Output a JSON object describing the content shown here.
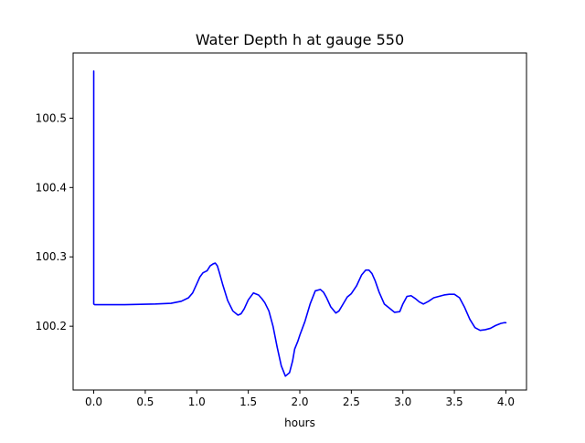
{
  "chart_data": {
    "type": "line",
    "title": "Water Depth h at gauge 550",
    "xlabel": "hours",
    "ylabel": "",
    "xlim": [
      -0.2,
      4.2
    ],
    "ylim": [
      100.108,
      100.594
    ],
    "xticks": [
      0.0,
      0.5,
      1.0,
      1.5,
      2.0,
      2.5,
      3.0,
      3.5,
      4.0
    ],
    "xtick_labels": [
      "0.0",
      "0.5",
      "1.0",
      "1.5",
      "2.0",
      "2.5",
      "3.0",
      "3.5",
      "4.0"
    ],
    "yticks": [
      100.2,
      100.3,
      100.4,
      100.5
    ],
    "ytick_labels": [
      "100.2",
      "100.3",
      "100.4",
      "100.5"
    ],
    "grid": false,
    "colors": {
      "line": "#0000ff",
      "axes": "#000000",
      "background": "#ffffff"
    },
    "series": [
      {
        "x": [
          0.0,
          0.0,
          0.01,
          0.3,
          0.6,
          0.75,
          0.85,
          0.92,
          0.96,
          1.0,
          1.03,
          1.06,
          1.1,
          1.13,
          1.16,
          1.18,
          1.2,
          1.22,
          1.25,
          1.3,
          1.35,
          1.4,
          1.43,
          1.46,
          1.5,
          1.55,
          1.6,
          1.63,
          1.66,
          1.7,
          1.74,
          1.78,
          1.82,
          1.86,
          1.9,
          1.93,
          1.95,
          1.98,
          2.0,
          2.05,
          2.1,
          2.15,
          2.2,
          2.23,
          2.26,
          2.3,
          2.35,
          2.38,
          2.42,
          2.46,
          2.5,
          2.55,
          2.6,
          2.64,
          2.67,
          2.7,
          2.73,
          2.77,
          2.82,
          2.87,
          2.92,
          2.97,
          3.0,
          3.04,
          3.08,
          3.12,
          3.16,
          3.2,
          3.25,
          3.3,
          3.35,
          3.4,
          3.45,
          3.5,
          3.55,
          3.6,
          3.65,
          3.7,
          3.75,
          3.8,
          3.85,
          3.9,
          3.95,
          3.98,
          4.0
        ],
        "y": [
          100.568,
          100.232,
          100.231,
          100.231,
          100.232,
          100.233,
          100.236,
          100.241,
          100.248,
          100.261,
          100.271,
          100.277,
          100.28,
          100.287,
          100.29,
          100.291,
          100.287,
          100.277,
          100.261,
          100.237,
          100.222,
          100.216,
          100.218,
          100.225,
          100.238,
          100.248,
          100.245,
          100.24,
          100.234,
          100.222,
          100.2,
          100.17,
          100.143,
          100.128,
          100.133,
          100.15,
          100.167,
          100.178,
          100.187,
          100.207,
          100.232,
          100.251,
          100.253,
          100.249,
          100.241,
          100.228,
          100.219,
          100.222,
          100.232,
          100.242,
          100.247,
          100.258,
          100.274,
          100.281,
          100.281,
          100.276,
          100.266,
          100.249,
          100.232,
          100.226,
          100.22,
          100.221,
          100.232,
          100.243,
          100.244,
          100.24,
          100.235,
          100.232,
          100.236,
          100.241,
          100.243,
          100.245,
          100.246,
          100.246,
          100.241,
          100.227,
          100.21,
          100.198,
          100.194,
          100.195,
          100.197,
          100.201,
          100.204,
          100.205,
          100.205
        ]
      }
    ]
  }
}
